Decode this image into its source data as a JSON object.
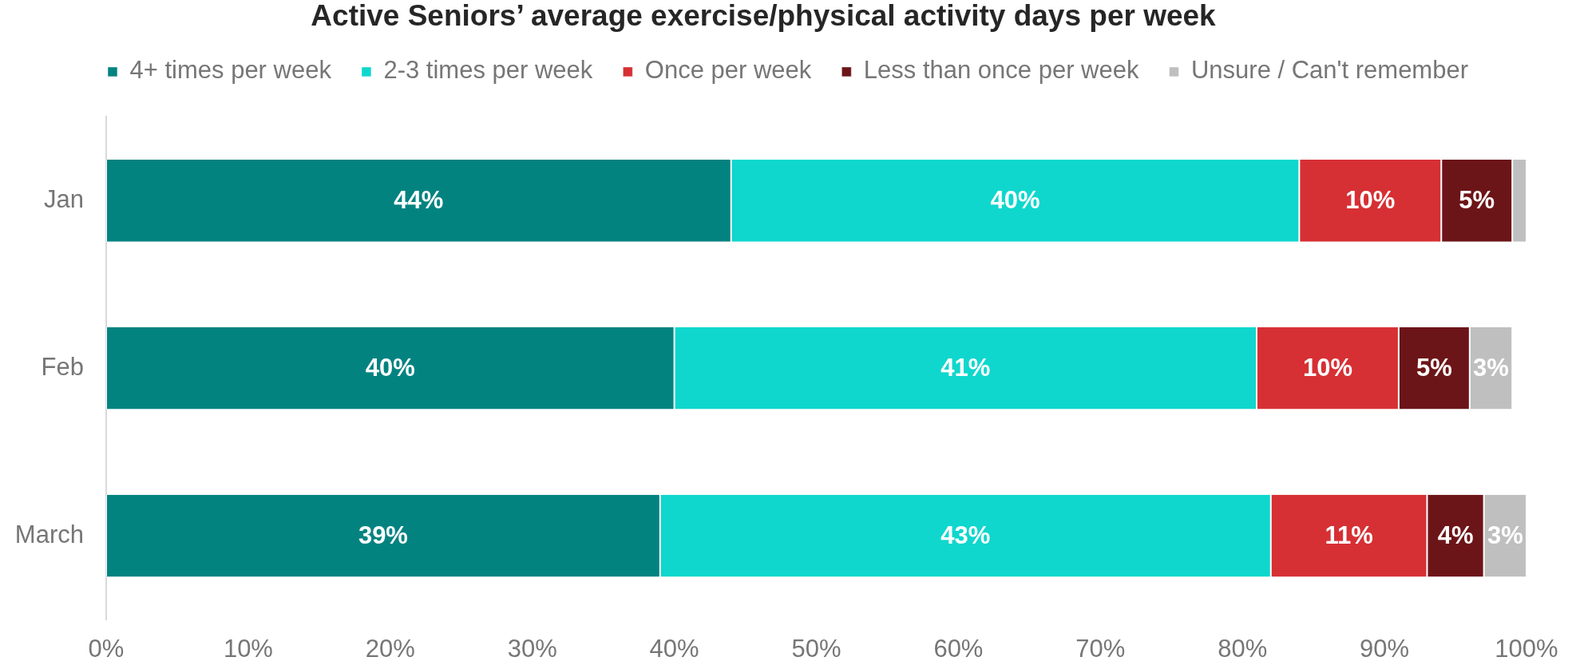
{
  "chart_data": {
    "type": "bar",
    "orientation": "horizontal",
    "stacked": true,
    "title": "Active Seniors’ average exercise/physical activity days per week",
    "categories": [
      "Jan",
      "Feb",
      "March"
    ],
    "series": [
      {
        "name": "4+ times per week",
        "color": "#038380",
        "values": [
          44,
          40,
          39
        ],
        "value_labels": [
          "44%",
          "40%",
          "39%"
        ]
      },
      {
        "name": "2-3 times per week",
        "color": "#0fd7cd",
        "values": [
          40,
          41,
          43
        ],
        "value_labels": [
          "40%",
          "41%",
          "43%"
        ]
      },
      {
        "name": "Once per week",
        "color": "#d63034",
        "values": [
          10,
          10,
          11
        ],
        "value_labels": [
          "10%",
          "10%",
          "11%"
        ]
      },
      {
        "name": "Less than once per week",
        "color": "#6c1518",
        "values": [
          5,
          5,
          4
        ],
        "value_labels": [
          "5%",
          "5%",
          "4%"
        ]
      },
      {
        "name": "Unsure / Can't remember",
        "color": "#bfbfbf",
        "values": [
          1,
          3,
          3
        ],
        "value_labels": [
          null,
          "3%",
          "3%"
        ]
      }
    ],
    "xlim": [
      0,
      100
    ],
    "xticks": [
      {
        "value": 0,
        "label": "0%"
      },
      {
        "value": 10,
        "label": "10%"
      },
      {
        "value": 20,
        "label": "20%"
      },
      {
        "value": 30,
        "label": "30%"
      },
      {
        "value": 40,
        "label": "40%"
      },
      {
        "value": 50,
        "label": "50%"
      },
      {
        "value": 60,
        "label": "60%"
      },
      {
        "value": 70,
        "label": "70%"
      },
      {
        "value": 80,
        "label": "80%"
      },
      {
        "value": 90,
        "label": "90%"
      },
      {
        "value": 100,
        "label": "100%"
      }
    ],
    "grid": false,
    "legend": "top"
  }
}
